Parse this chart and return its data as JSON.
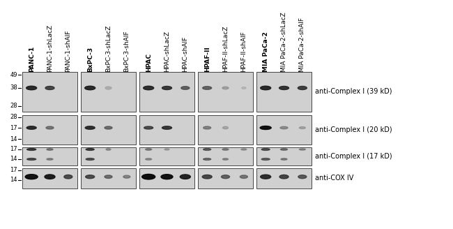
{
  "fig_width": 6.5,
  "fig_height": 3.28,
  "dpi": 100,
  "bg_color": "#ffffff",
  "panel_bg": "#d0d0d0",
  "col_labels": [
    "PANC-1",
    "PANC-1-shLacZ",
    "PANC-1-shAIF",
    "BxPC-3",
    "BxPC-3-shLacZ",
    "BxPC-3-shAIF",
    "HPAC",
    "HPAC-shLacZ",
    "HPAC-shAIF",
    "HPAF-II",
    "HPAF-II-shLacZ",
    "HPAF-II-shAIF",
    "MIA PaCa-2",
    "MIA PaCa-2-shLacZ",
    "MIA PaCa-2-shAIF"
  ],
  "row_labels": [
    "anti-Complex I (39 kD)",
    "anti-Complex I (20 kD)",
    "anti-Complex I (17 kD)",
    "anti-COX IV"
  ],
  "label_fontsize": 6.5,
  "mw_fontsize": 6.0,
  "row_label_fontsize": 7.0,
  "panel_edge_color": "#444444",
  "panel_edge_lw": 0.7,
  "mw_tick_color": "#000000",
  "mw_label_color": "#000000"
}
